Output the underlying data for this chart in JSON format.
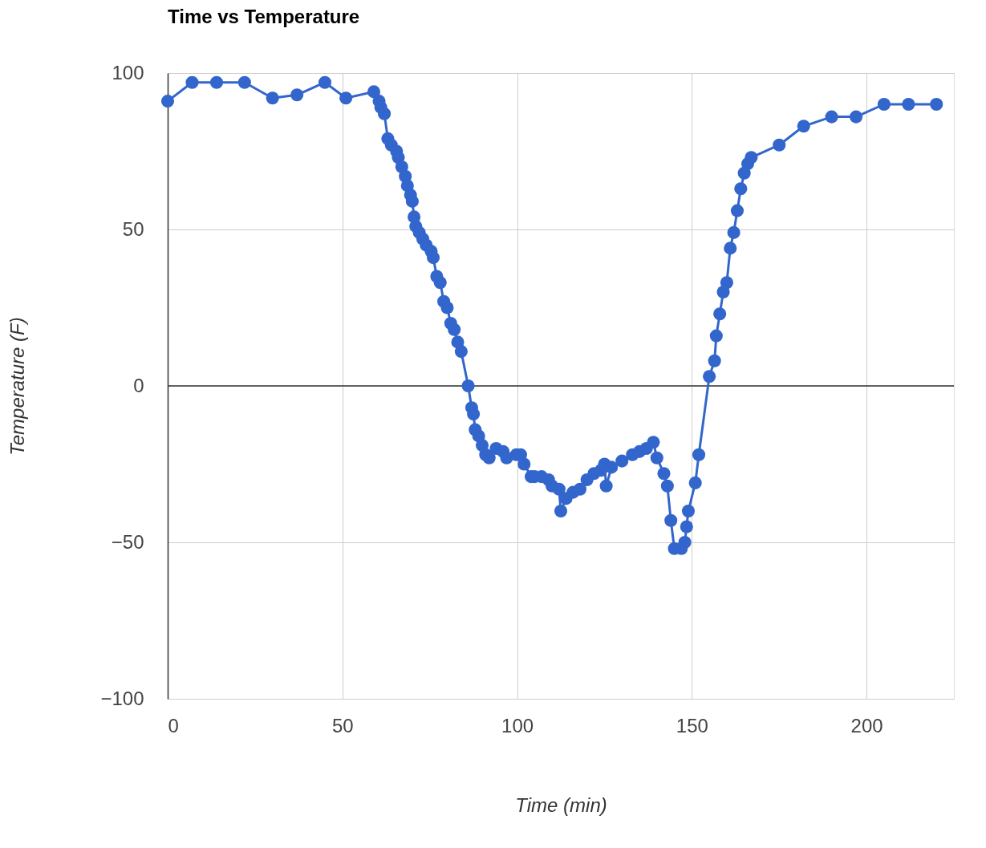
{
  "chart_data": {
    "type": "line",
    "title": "Time vs Temperature",
    "xlabel": "Time (min)",
    "ylabel": "Temperature (F)",
    "xlim": [
      0,
      225
    ],
    "xticks": [
      0,
      50,
      100,
      150,
      200
    ],
    "ylim": [
      -100,
      100
    ],
    "yticks": [
      -100,
      -50,
      0,
      50,
      100
    ],
    "grid": true,
    "marker": "circle",
    "line_style": "solid",
    "ref_lines": [
      {
        "axis": "y",
        "value": 0,
        "color": "#333333"
      }
    ],
    "series": [
      {
        "color": "#3366cc",
        "x": [
          0,
          7,
          14,
          22,
          30,
          37,
          45,
          51,
          59,
          60.5,
          61,
          62,
          63,
          64,
          65.5,
          66,
          67,
          68,
          68.6,
          69.5,
          70,
          70.5,
          71,
          72,
          73,
          74,
          75.4,
          76,
          77,
          78,
          79,
          80,
          81,
          82,
          83,
          84,
          86,
          87,
          87.5,
          88,
          89,
          90,
          91,
          92,
          94,
          96,
          97,
          99.8,
          101,
          102,
          104,
          105,
          107,
          109,
          110,
          112,
          112.5,
          114,
          116,
          118,
          120,
          122,
          124,
          125,
          125.5,
          127,
          130,
          133,
          135,
          137,
          139,
          140,
          142,
          143,
          144,
          145,
          147,
          148,
          148.5,
          149,
          151,
          152,
          155,
          156.5,
          157,
          158,
          159,
          160,
          161,
          162,
          163,
          164,
          165,
          166,
          167,
          175,
          182,
          190,
          197,
          205,
          212,
          220
        ],
        "values": [
          91,
          97,
          97,
          97,
          92,
          93,
          97,
          92,
          94,
          91,
          89,
          87,
          79,
          77,
          75,
          73,
          70,
          67,
          64,
          61,
          59,
          54,
          51,
          49,
          47,
          45,
          43,
          41,
          35,
          33,
          27,
          25,
          20,
          18,
          14,
          11,
          0,
          -7,
          -9,
          -14,
          -16,
          -19,
          -22,
          -23,
          -20,
          -21,
          -23,
          -22,
          -22,
          -25,
          -29,
          -29,
          -29,
          -30,
          -32,
          -33,
          -40,
          -36,
          -34,
          -33,
          -30,
          -28,
          -27,
          -25,
          -32,
          -26,
          -24,
          -22,
          -21,
          -20,
          -18,
          -23,
          -28,
          -32,
          -43,
          -52,
          -52,
          -50,
          -45,
          -40,
          -31,
          -22,
          3,
          8,
          16,
          23,
          30,
          33,
          44,
          49,
          56,
          63,
          68,
          71,
          73,
          77,
          83,
          86,
          86,
          90,
          90,
          90
        ]
      }
    ]
  }
}
